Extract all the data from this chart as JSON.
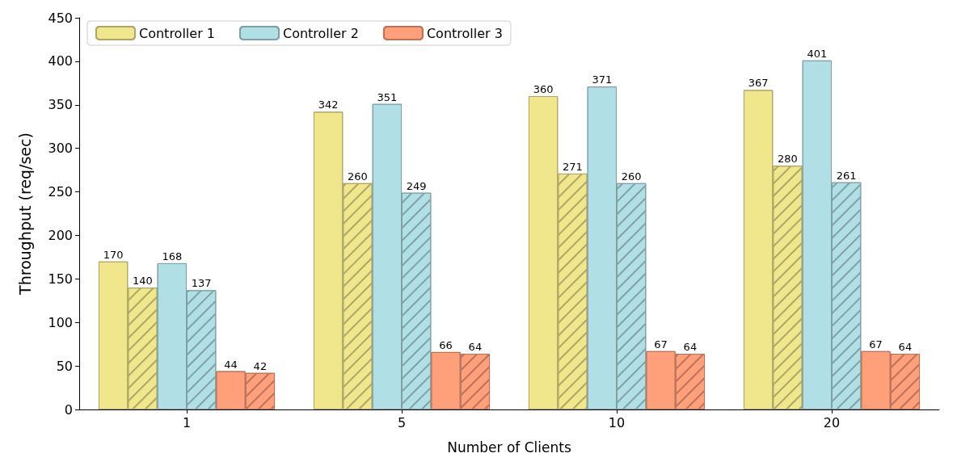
{
  "chart_data": {
    "type": "bar",
    "xlabel": "Number of Clients",
    "ylabel": "Throughput (req/sec)",
    "categories": [
      "1",
      "5",
      "10",
      "20"
    ],
    "series": [
      {
        "name": "Controller 1",
        "color": "#f0e68c",
        "values": [
          170,
          342,
          360,
          367
        ]
      },
      {
        "color": "#f0e68c",
        "values": [
          140,
          260,
          271,
          280
        ]
      },
      {
        "name": "Controller 2",
        "color": "#b0e0e6",
        "values": [
          168,
          351,
          371,
          401
        ]
      },
      {
        "color": "#b0e0e6",
        "values": [
          137,
          249,
          260,
          261
        ]
      },
      {
        "name": "Controller 3",
        "color": "#ffa07a",
        "values": [
          44,
          66,
          67,
          67
        ]
      },
      {
        "color": "#ffa07a",
        "values": [
          42,
          64,
          64,
          64
        ]
      }
    ],
    "ylim": [
      0,
      450
    ],
    "yticks": [
      0,
      50,
      100,
      150,
      200,
      250,
      300,
      350,
      400,
      450
    ],
    "data_labels": true,
    "legend": "top left",
    "grid": false
  }
}
